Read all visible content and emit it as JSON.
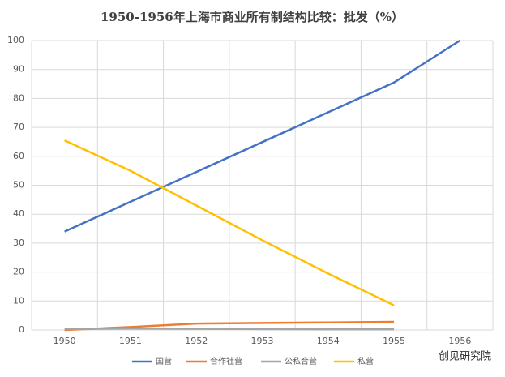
{
  "chart_data": {
    "type": "line",
    "title": "1950-1956年上海市商业所有制结构比较：批发（%）",
    "categories": [
      "1950",
      "1951",
      "1952",
      "1953",
      "1954",
      "1955",
      "1956"
    ],
    "series": [
      {
        "name": "国营",
        "color": "#4472c4",
        "values": [
          34,
          44.3,
          54.6,
          64.9,
          75.2,
          85.5,
          100
        ]
      },
      {
        "name": "合作社营",
        "color": "#ed7d31",
        "values": [
          0,
          1,
          2.2,
          2.4,
          2.6,
          2.8,
          null
        ]
      },
      {
        "name": "公私合营",
        "color": "#a5a5a5",
        "values": [
          0.3,
          0.5,
          0.4,
          0.3,
          0.2,
          0.2,
          null
        ]
      },
      {
        "name": "私营",
        "color": "#ffc000",
        "values": [
          65.5,
          55,
          43,
          31,
          19.5,
          8.5,
          null
        ]
      }
    ],
    "ylim": [
      0,
      100
    ],
    "yticks": [
      0,
      10,
      20,
      30,
      40,
      50,
      60,
      70,
      80,
      90,
      100
    ],
    "grid": true,
    "legend": "bottom",
    "watermark": "创见研究院"
  }
}
